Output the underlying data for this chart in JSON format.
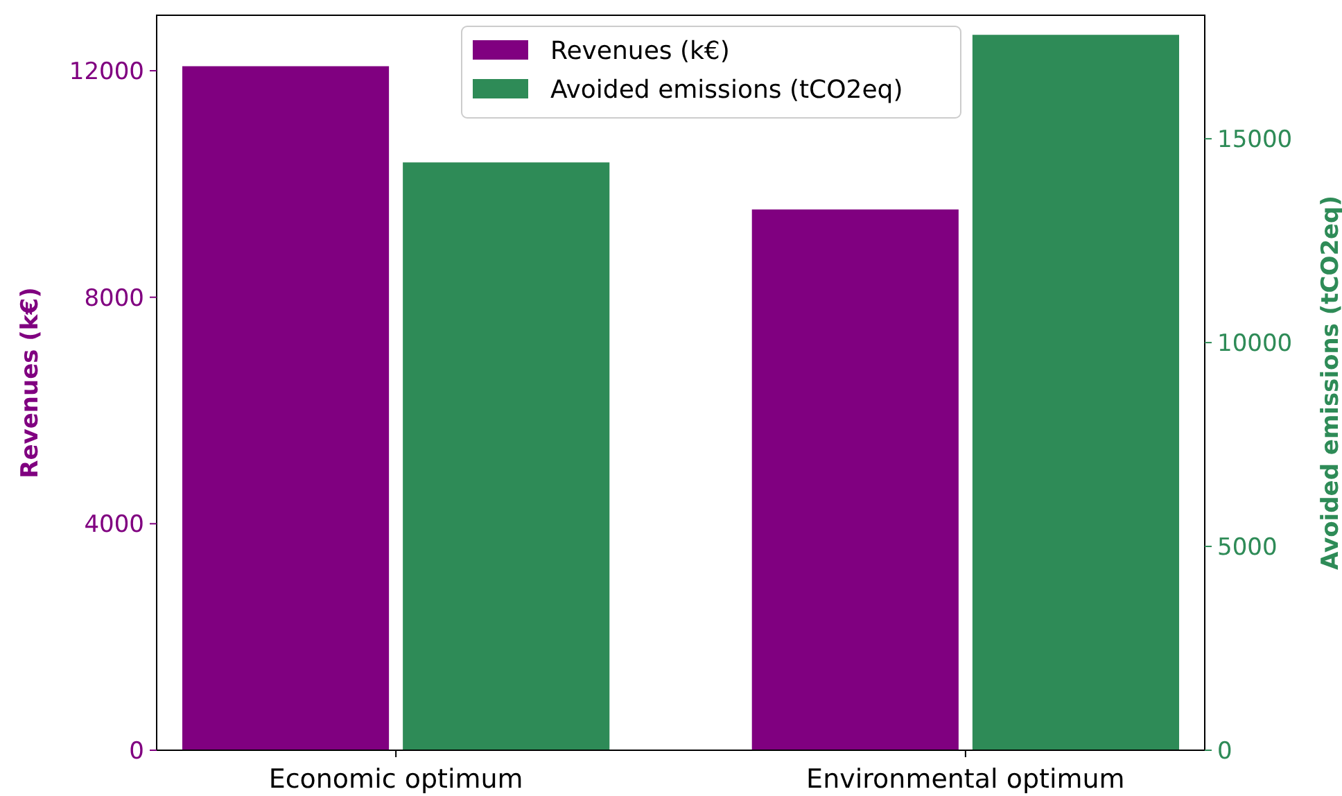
{
  "chart_data": {
    "type": "bar",
    "categories": [
      "Economic optimum",
      "Environmental optimum"
    ],
    "series": [
      {
        "name": "Revenues (k€)",
        "color": "#800080",
        "values": [
          12080,
          9550
        ]
      },
      {
        "name": "Avoided emissions (tCO2eq)",
        "color": "#2e8b57",
        "values": [
          14420,
          17550
        ],
        "axis": "y2"
      }
    ],
    "ylabel": "Revenues (k€)",
    "y2label": "Avoided emissions (tCO2eq)",
    "ylim": [
      0,
      12980
    ],
    "yticks": [
      0,
      4000,
      8000,
      12000
    ],
    "y2lim": [
      0,
      18030
    ],
    "y2ticks": [
      0,
      5000,
      10000,
      15000
    ],
    "legend": "top",
    "grid": false
  }
}
